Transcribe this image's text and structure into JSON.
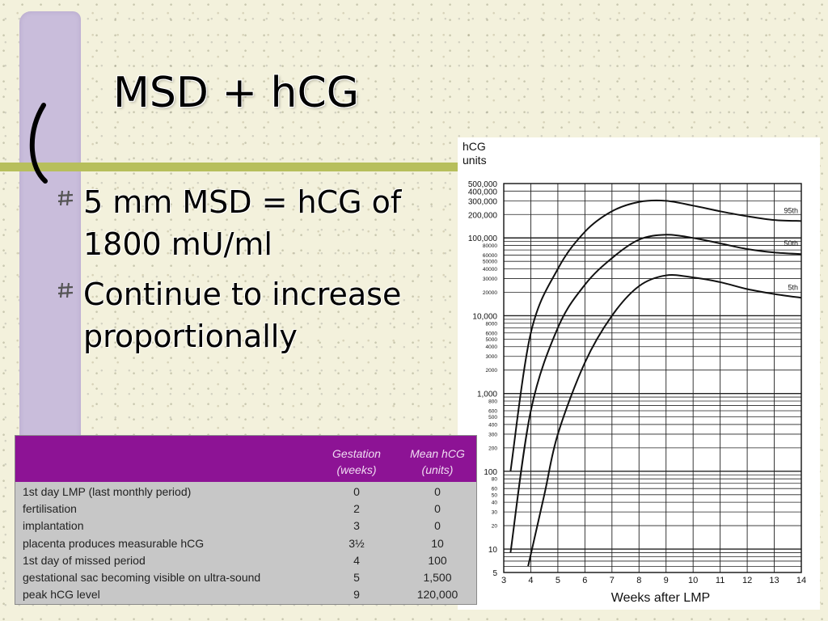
{
  "slide": {
    "title": "MSD + hCG",
    "bullets": [
      {
        "line1": "5 mm MSD = hCG of",
        "line2": "1800 mU/ml"
      },
      {
        "line1": "Continue to increase",
        "line2": "proportionally"
      }
    ]
  },
  "table": {
    "headers": {
      "gestation_1": "Gestation",
      "gestation_2": "(weeks)",
      "hcg_1": "Mean hCG",
      "hcg_2": "(units)"
    },
    "rows": [
      {
        "event": "1st day LMP (last monthly period)",
        "gestation": "0",
        "hcg": "0"
      },
      {
        "event": "fertilisation",
        "gestation": "2",
        "hcg": "0"
      },
      {
        "event": "implantation",
        "gestation": "3",
        "hcg": "0"
      },
      {
        "event": "placenta produces measurable hCG",
        "gestation": "3½",
        "hcg": "10"
      },
      {
        "event": "1st day of missed period",
        "gestation": "4",
        "hcg": "100"
      },
      {
        "event": "gestational sac becoming visible on ultra-sound",
        "gestation": "5",
        "hcg": "1,500"
      },
      {
        "event": "peak hCG level",
        "gestation": "9",
        "hcg": "120,000"
      }
    ],
    "colors": {
      "header_bg": "#8d1395",
      "header_text": "#f0dcf2",
      "body_bg": "#c7c7c7"
    }
  },
  "chart_data": {
    "type": "line",
    "ylabel": "hCG units",
    "xlabel": "Weeks after LMP",
    "yscale": "log",
    "ylim": [
      5,
      500000
    ],
    "xlim": [
      3,
      14
    ],
    "x_ticks": [
      "3",
      "4",
      "5",
      "6",
      "7",
      "8",
      "9",
      "10",
      "11",
      "12",
      "13",
      "14"
    ],
    "y_tick_labels": [
      {
        "value": 500000,
        "label": "500,000"
      },
      {
        "value": 400000,
        "label": "400,000"
      },
      {
        "value": 300000,
        "label": "300,000"
      },
      {
        "value": 200000,
        "label": "200,000"
      },
      {
        "value": 100000,
        "label": "100,000"
      },
      {
        "value": 80000,
        "label": "80000"
      },
      {
        "value": 60000,
        "label": "60000"
      },
      {
        "value": 50000,
        "label": "50000"
      },
      {
        "value": 40000,
        "label": "40000"
      },
      {
        "value": 30000,
        "label": "30000"
      },
      {
        "value": 20000,
        "label": "20000"
      },
      {
        "value": 10000,
        "label": "10,000"
      },
      {
        "value": 8000,
        "label": "8000"
      },
      {
        "value": 6000,
        "label": "6000"
      },
      {
        "value": 5000,
        "label": "5000"
      },
      {
        "value": 4000,
        "label": "4000"
      },
      {
        "value": 3000,
        "label": "3000"
      },
      {
        "value": 2000,
        "label": "2000"
      },
      {
        "value": 1000,
        "label": "1,000"
      },
      {
        "value": 800,
        "label": "800"
      },
      {
        "value": 600,
        "label": "600"
      },
      {
        "value": 500,
        "label": "500"
      },
      {
        "value": 400,
        "label": "400"
      },
      {
        "value": 300,
        "label": "300"
      },
      {
        "value": 200,
        "label": "200"
      },
      {
        "value": 100,
        "label": "100"
      },
      {
        "value": 80,
        "label": "80"
      },
      {
        "value": 60,
        "label": "60"
      },
      {
        "value": 50,
        "label": "50"
      },
      {
        "value": 40,
        "label": "40"
      },
      {
        "value": 30,
        "label": "30"
      },
      {
        "value": 20,
        "label": "20"
      },
      {
        "value": 10,
        "label": "10"
      },
      {
        "value": 5,
        "label": "5"
      }
    ],
    "series": [
      {
        "name": "95th",
        "x": [
          3.25,
          4,
          5,
          6,
          7,
          8,
          9,
          10,
          11,
          12,
          13,
          14
        ],
        "y": [
          100,
          6000,
          40000,
          120000,
          220000,
          290000,
          300000,
          260000,
          220000,
          190000,
          170000,
          165000
        ]
      },
      {
        "name": "50th",
        "x": [
          3.25,
          4,
          5,
          6,
          7,
          8,
          9,
          10,
          11,
          12,
          13,
          14
        ],
        "y": [
          9,
          600,
          7000,
          25000,
          55000,
          95000,
          110000,
          100000,
          85000,
          72000,
          65000,
          62000
        ]
      },
      {
        "name": "5th",
        "x": [
          3.9,
          4.5,
          5,
          6,
          7,
          8,
          9,
          10,
          11,
          12,
          13,
          14
        ],
        "y": [
          6,
          50,
          300,
          2500,
          10000,
          24000,
          33000,
          31000,
          27000,
          22000,
          19000,
          17000
        ]
      }
    ],
    "grid": true,
    "line_color": "#111111"
  }
}
